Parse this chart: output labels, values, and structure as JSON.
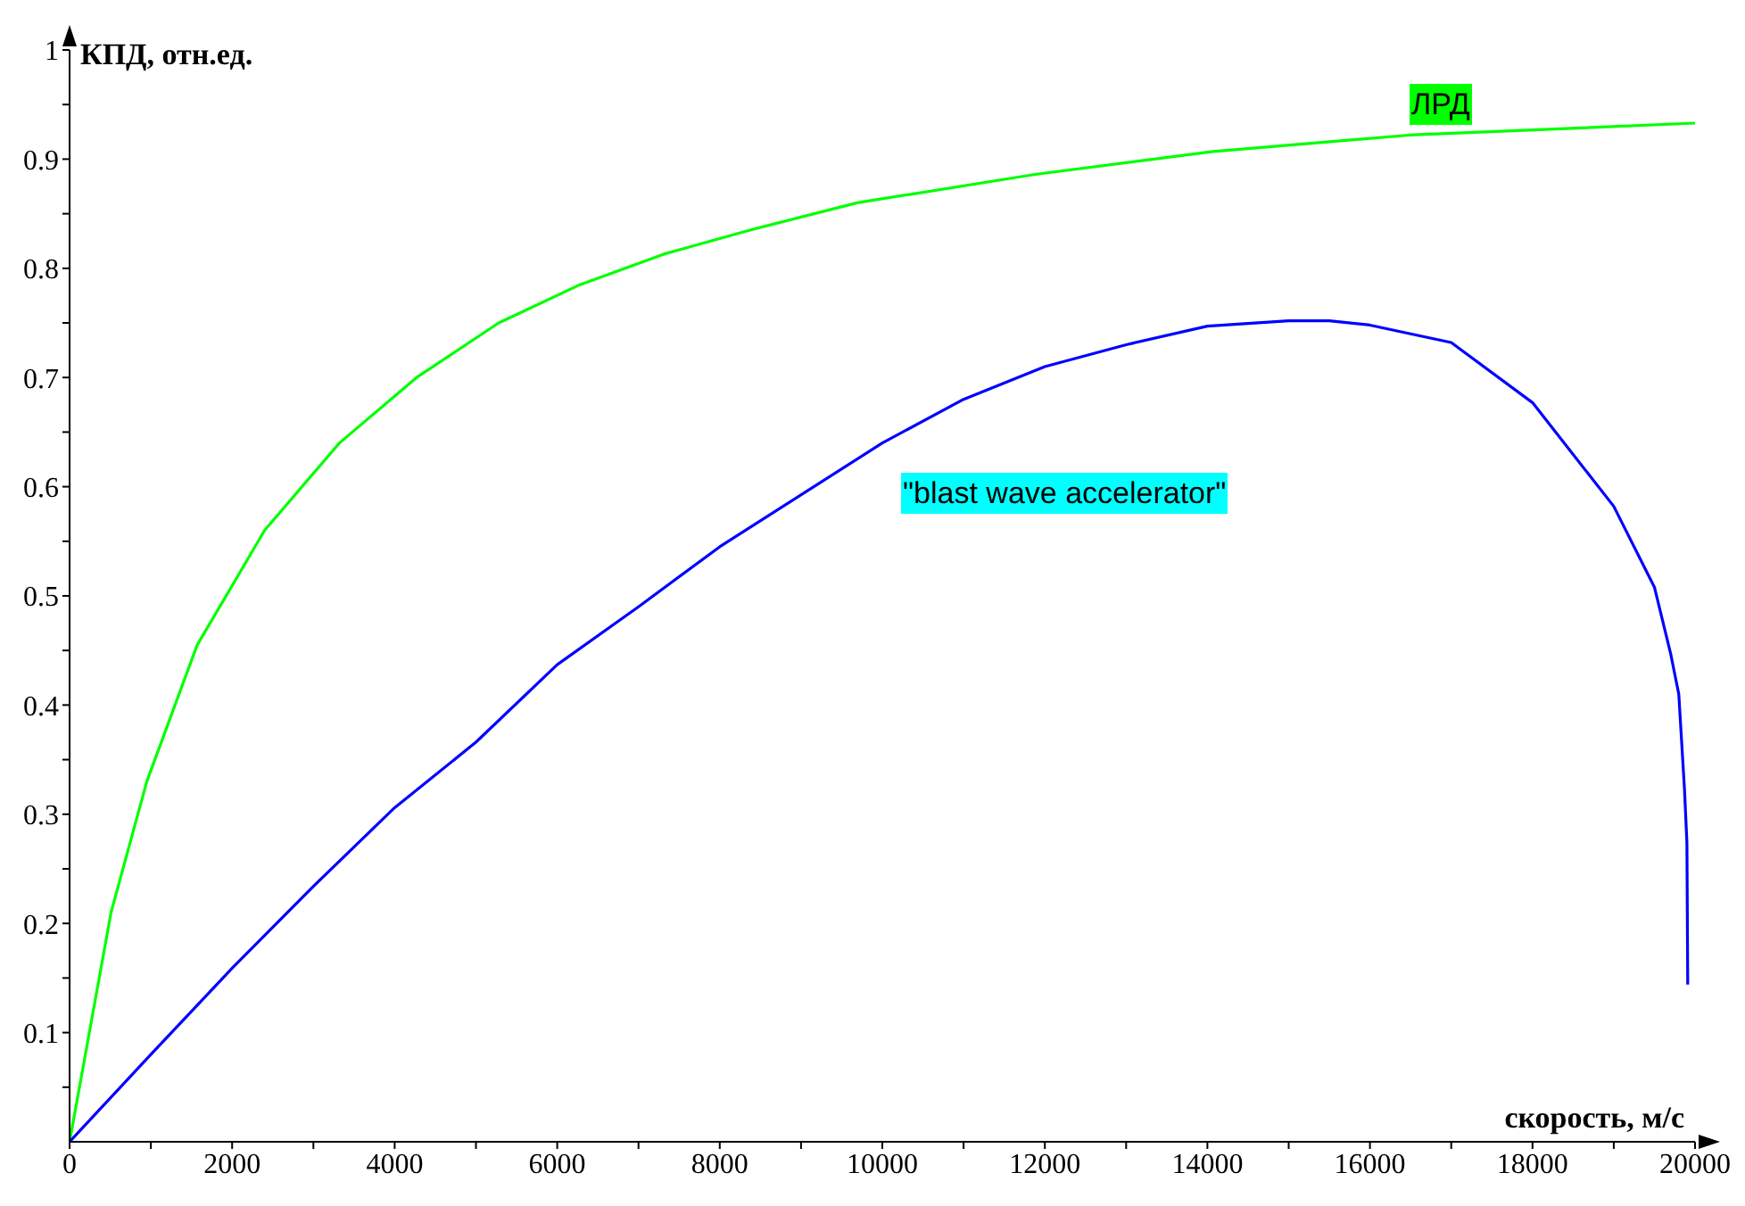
{
  "chart_data": {
    "type": "line",
    "xlabel": "скорость, м/с",
    "ylabel": "КПД, отн.ед.",
    "xlim": [
      0,
      20000
    ],
    "ylim": [
      0,
      1
    ],
    "xticks": [
      0,
      {
        "value": 1000,
        "label": null
      },
      2000,
      {
        "value": 3000,
        "label": null
      },
      4000,
      {
        "value": 5000,
        "label": null
      },
      6000,
      {
        "value": 7000,
        "label": null
      },
      8000,
      {
        "value": 9000,
        "label": null
      },
      10000,
      {
        "value": 11000,
        "label": null
      },
      12000,
      {
        "value": 13000,
        "label": null
      },
      14000,
      {
        "value": 15000,
        "label": null
      },
      16000,
      {
        "value": 17000,
        "label": null
      },
      18000,
      {
        "value": 19000,
        "label": null
      },
      20000
    ],
    "yticks": [
      {
        "value": 0.05,
        "label": null
      },
      0.1,
      {
        "value": 0.15,
        "label": null
      },
      0.2,
      {
        "value": 0.25,
        "label": null
      },
      0.3,
      {
        "value": 0.35,
        "label": null
      },
      0.4,
      {
        "value": 0.45,
        "label": null
      },
      0.5,
      {
        "value": 0.55,
        "label": null
      },
      0.6,
      {
        "value": 0.65,
        "label": null
      },
      0.7,
      {
        "value": 0.75,
        "label": null
      },
      0.8,
      {
        "value": 0.85,
        "label": null
      },
      0.9,
      {
        "value": 0.95,
        "label": null
      },
      1
    ],
    "grid": false,
    "legend": false,
    "marker": "none",
    "line_style": "solid",
    "series": [
      {
        "name": "ЛРД",
        "color": "#00ff00",
        "x": [
          0,
          510,
          950,
          1570,
          2400,
          3320,
          4270,
          5280,
          6280,
          7310,
          8370,
          9690,
          11880,
          14070,
          16480,
          20000
        ],
        "values": [
          0,
          0.21,
          0.33,
          0.455,
          0.56,
          0.64,
          0.7,
          0.75,
          0.785,
          0.813,
          0.835,
          0.86,
          0.886,
          0.907,
          0.922,
          0.933
        ]
      },
      {
        "name": "\"blast wave accelerator\"",
        "color": "#0000ff",
        "x": [
          0,
          1000,
          2000,
          3000,
          4000,
          5000,
          6000,
          7000,
          8000,
          10000,
          11000,
          12000,
          13000,
          14000,
          15000,
          15500,
          16000,
          17000,
          18000,
          19000,
          19500,
          19700,
          19800,
          19870,
          19900,
          19910
        ],
        "values": [
          0,
          0.08,
          0.159,
          0.234,
          0.306,
          0.366,
          0.437,
          0.49,
          0.545,
          0.64,
          0.68,
          0.71,
          0.73,
          0.747,
          0.752,
          0.752,
          0.748,
          0.732,
          0.677,
          0.582,
          0.508,
          0.447,
          0.41,
          0.323,
          0.274,
          0.144
        ]
      }
    ]
  }
}
